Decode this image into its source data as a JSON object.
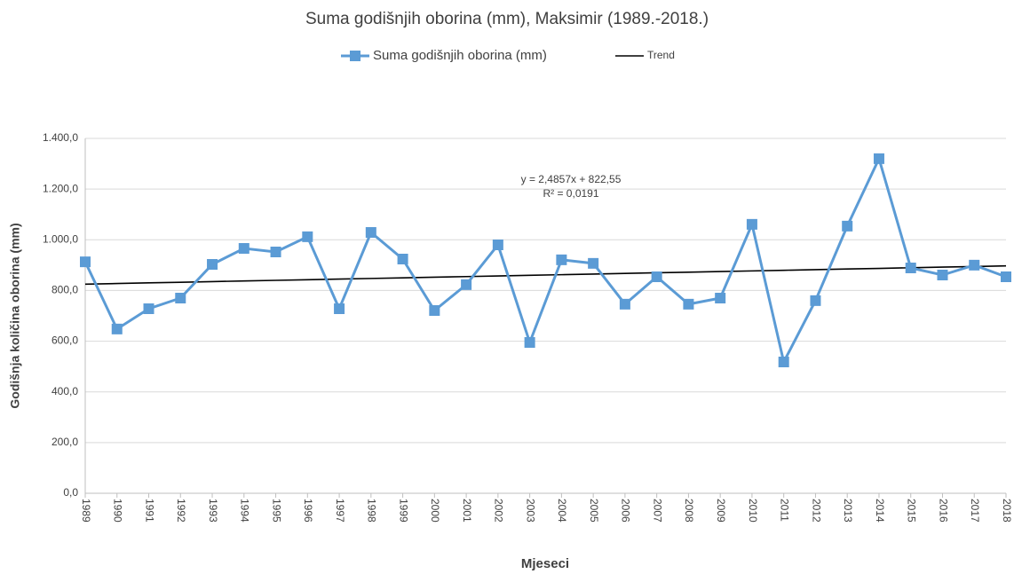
{
  "chart_data": {
    "type": "line",
    "title": "Suma godišnjih oborina (mm), Maksimir (1989.-2018.)",
    "xlabel": "Mjeseci",
    "ylabel": "Godišnja količina oborina (mm)",
    "categories": [
      "1989",
      "1990",
      "1991",
      "1992",
      "1993",
      "1994",
      "1995",
      "1996",
      "1997",
      "1998",
      "1999",
      "2000",
      "2001",
      "2002",
      "2003",
      "2004",
      "2005",
      "2006",
      "2007",
      "2008",
      "2009",
      "2010",
      "2011",
      "2012",
      "2013",
      "2014",
      "2015",
      "2016",
      "2017",
      "2018"
    ],
    "series": [
      {
        "name": "Suma godišnjih oborina (mm)",
        "color": "#5b9bd5",
        "marker": "square",
        "values": [
          913,
          648,
          728,
          770,
          903,
          966,
          952,
          1012,
          728,
          1029,
          924,
          721,
          823,
          980,
          595,
          921,
          907,
          746,
          854,
          746,
          770,
          1061,
          518,
          760,
          1054,
          1320,
          889,
          861,
          900,
          854
        ]
      },
      {
        "name": "Trend",
        "color": "#000000",
        "values": [
          825.0,
          827.5,
          830.0,
          832.5,
          835.0,
          837.5,
          840.0,
          842.4,
          844.9,
          847.4,
          849.9,
          852.4,
          854.9,
          857.4,
          859.8,
          862.3,
          864.8,
          867.3,
          869.8,
          872.3,
          874.8,
          877.2,
          879.7,
          882.2,
          884.7,
          887.2,
          889.7,
          892.2,
          894.6,
          897.1
        ]
      }
    ],
    "annotations": [
      "y = 2,4857x + 822,55",
      "R² = 0,0191"
    ],
    "ylim": [
      0,
      1400
    ],
    "yticks": [
      {
        "value": 0,
        "label": "0,0"
      },
      {
        "value": 200,
        "label": "200,0"
      },
      {
        "value": 400,
        "label": "400,0"
      },
      {
        "value": 600,
        "label": "600,0"
      },
      {
        "value": 800,
        "label": "800,0"
      },
      {
        "value": 1000,
        "label": "1.000,0"
      },
      {
        "value": 1200,
        "label": "1.200,0"
      },
      {
        "value": 1400,
        "label": "1.400,0"
      }
    ],
    "grid": true,
    "legend": "top"
  }
}
